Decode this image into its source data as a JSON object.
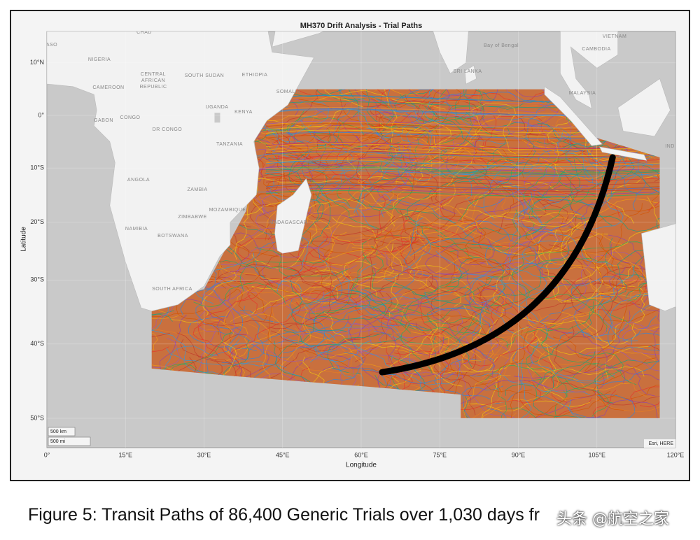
{
  "title": "MH370 Drift Analysis - Trial Paths",
  "x_axis": {
    "label": "Longitude",
    "lim": [
      0,
      120
    ],
    "ticks": [
      {
        "value": 0,
        "label": "0°"
      },
      {
        "value": 15,
        "label": "15°E"
      },
      {
        "value": 30,
        "label": "30°E"
      },
      {
        "value": 45,
        "label": "45°E"
      },
      {
        "value": 60,
        "label": "60°E"
      },
      {
        "value": 75,
        "label": "75°E"
      },
      {
        "value": 90,
        "label": "90°E"
      },
      {
        "value": 105,
        "label": "105°E"
      },
      {
        "value": 120,
        "label": "120°E"
      }
    ]
  },
  "y_axis": {
    "label": "Latitude",
    "ticks": [
      {
        "value": 10,
        "label": "10°N"
      },
      {
        "value": 0,
        "label": "0°"
      },
      {
        "value": -10,
        "label": "10°S"
      },
      {
        "value": -20,
        "label": "20°S"
      },
      {
        "value": -30,
        "label": "30°S"
      },
      {
        "value": -40,
        "label": "40°S"
      },
      {
        "value": -50,
        "label": "50°S"
      }
    ]
  },
  "places": [
    "NIGERIA",
    "CHAD",
    "CENTRAL",
    "AFRICAN",
    "REPUBLIC",
    "SOUTH SUDAN",
    "ETHIOPIA",
    "SOMALIA",
    "CAMEROON",
    "GABON",
    "CONGO",
    "DR CONGO",
    "UGANDA",
    "KENYA",
    "TANZANIA",
    "ANGOLA",
    "ZAMBIA",
    "MOZAMBIQUE",
    "ZIMBABWE",
    "NAMIBIA",
    "BOTSWANA",
    "MADAGASCAR",
    "SOUTH AFRICA",
    "SRI LANKA",
    "Bay of Bengal",
    "VIETNAM",
    "CAMBODIA",
    "MALAYSIA",
    "IND",
    "ASO"
  ],
  "scale_bar": [
    "500 km",
    "500 mi"
  ],
  "attribution": "Esri, HERE",
  "caption": "Figure 5: Transit Paths of 86,400 Generic Trials over 1,030 days fr",
  "watermark": "头条 @航空之家"
}
